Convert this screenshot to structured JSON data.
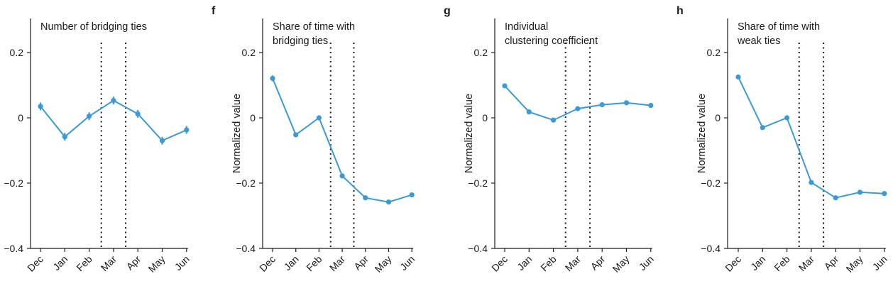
{
  "chart_data": [
    {
      "type": "line",
      "panel_letter": "",
      "title": "Number of bridging ties",
      "ylabel": "",
      "categories": [
        "Dec",
        "Jan",
        "Feb",
        "Mar",
        "Apr",
        "May",
        "Jun"
      ],
      "values": [
        0.035,
        -0.058,
        0.005,
        0.053,
        0.012,
        -0.07,
        -0.037
      ],
      "errors": [
        0.012,
        0.012,
        0.012,
        0.012,
        0.012,
        0.012,
        0.012
      ],
      "event_lines_between": [
        [
          2,
          3
        ],
        [
          3,
          4
        ]
      ],
      "ylim": [
        -0.4,
        0.3
      ],
      "yticks": [
        0.2,
        0,
        -0.2,
        -0.4
      ],
      "ytick_labels": [
        "0.2",
        "0",
        "−0.2",
        "−0.4"
      ],
      "grid": false,
      "color": "#3a9ad9"
    },
    {
      "type": "line",
      "panel_letter": "f",
      "title": "Share of time with\nbridging ties",
      "ylabel": "Normalized value",
      "categories": [
        "Dec",
        "Jan",
        "Feb",
        "Mar",
        "Apr",
        "May",
        "Jun"
      ],
      "values": [
        0.121,
        -0.052,
        0.0,
        -0.178,
        -0.245,
        -0.258,
        -0.236
      ],
      "errors": [
        0.009,
        0.006,
        0.006,
        0.006,
        0.006,
        0.006,
        0.006
      ],
      "event_lines_between": [
        [
          2,
          3
        ],
        [
          3,
          4
        ]
      ],
      "ylim": [
        -0.4,
        0.3
      ],
      "yticks": [
        0.2,
        0,
        -0.2,
        -0.4
      ],
      "ytick_labels": [
        "0.2",
        "0",
        "−0.2",
        "−0.4"
      ],
      "grid": false,
      "color": "#3a9ad9"
    },
    {
      "type": "line",
      "panel_letter": "g",
      "title": "Individual\nclustering coefficient",
      "ylabel": "Normalized value",
      "categories": [
        "Dec",
        "Jan",
        "Feb",
        "Mar",
        "Apr",
        "May",
        "Jun"
      ],
      "values": [
        0.098,
        0.018,
        -0.007,
        0.028,
        0.04,
        0.046,
        0.038
      ],
      "errors": [
        0.006,
        0.004,
        0.004,
        0.004,
        0.004,
        0.004,
        0.004
      ],
      "event_lines_between": [
        [
          2,
          3
        ],
        [
          3,
          4
        ]
      ],
      "ylim": [
        -0.4,
        0.3
      ],
      "yticks": [
        0.2,
        0,
        -0.2,
        -0.4
      ],
      "ytick_labels": [
        "0.2",
        "0",
        "−0.2",
        "−0.4"
      ],
      "grid": false,
      "color": "#3a9ad9"
    },
    {
      "type": "line",
      "panel_letter": "h",
      "title": "Share of time with\nweak ties",
      "ylabel": "Normalized value",
      "categories": [
        "Dec",
        "Jan",
        "Feb",
        "Mar",
        "Apr",
        "May",
        "Jun"
      ],
      "values": [
        0.125,
        -0.03,
        0.0,
        -0.198,
        -0.245,
        -0.228,
        -0.232
      ],
      "errors": [
        0.004,
        0.003,
        0.003,
        0.003,
        0.003,
        0.003,
        0.003
      ],
      "event_lines_between": [
        [
          2,
          3
        ],
        [
          3,
          4
        ]
      ],
      "ylim": [
        -0.4,
        0.3
      ],
      "yticks": [
        0.2,
        0,
        -0.2,
        -0.4
      ],
      "ytick_labels": [
        "0.2",
        "0",
        "−0.2",
        "−0.4"
      ],
      "grid": false,
      "color": "#3a9ad9"
    }
  ]
}
